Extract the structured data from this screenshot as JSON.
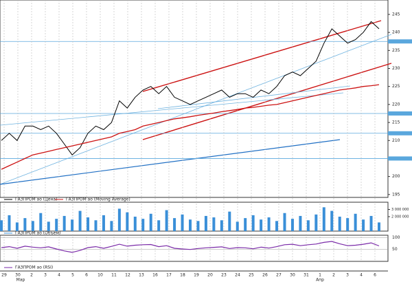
{
  "chart_data": {
    "type": "line",
    "series": [
      {
        "name": "ГАЗПРОМ ао (Цена)",
        "color": "#000000",
        "values": [
          210,
          212,
          210,
          214,
          214,
          213,
          214,
          212,
          209,
          206,
          208,
          212,
          214,
          213,
          215,
          221,
          219,
          222,
          224,
          225,
          223,
          225,
          222,
          221,
          220,
          221,
          222,
          223,
          224,
          222,
          223,
          223,
          222,
          224,
          223,
          225,
          228,
          229,
          228,
          230,
          232,
          237,
          241,
          239,
          237,
          238,
          240,
          243,
          241
        ]
      },
      {
        "name": "ГАЗПРОМ ао (Moving Average)",
        "color": "#cc1111",
        "values": [
          202,
          203,
          204,
          205,
          206,
          206.5,
          207,
          207.5,
          208,
          208.5,
          209,
          209.5,
          210,
          210.5,
          211,
          212,
          212.5,
          213,
          214,
          214.5,
          215,
          215.5,
          216,
          216.3,
          216.6,
          217,
          217.3,
          217.6,
          218,
          218.3,
          218.6,
          219,
          219.2,
          219.5,
          219.8,
          220,
          220.5,
          221,
          221.5,
          222,
          222.5,
          223,
          223.5,
          224,
          224.3,
          224.6,
          225,
          225.2,
          225.5
        ]
      }
    ],
    "ylim": [
      194.2,
      249
    ],
    "yticks": [
      195,
      200,
      205,
      210,
      215,
      220,
      225,
      230,
      235,
      240,
      245
    ],
    "levels": [
      237.5,
      217.5,
      212,
      205
    ],
    "volume": {
      "name": "ГАЗПРОМ ао (Объем)",
      "color": "#3a8fd8",
      "values": [
        1500000,
        2200000,
        1200000,
        1800000,
        1400000,
        2500000,
        1300000,
        1700000,
        2100000,
        1600000,
        2800000,
        1900000,
        1500000,
        2200000,
        1400000,
        3100000,
        2600000,
        2000000,
        1700000,
        2400000,
        1500000,
        2900000,
        1800000,
        2300000,
        1600000,
        1400000,
        2100000,
        1900000,
        1500000,
        2700000,
        1300000,
        1800000,
        2200000,
        1600000,
        1900000,
        1400000,
        2500000,
        1700000,
        2100000,
        1500000,
        2300000,
        3300000,
        2800000,
        2000000,
        1800000,
        2400000,
        1600000,
        2100000,
        1200000
      ],
      "ylim": [
        0,
        4000000
      ],
      "yticks": [
        {
          "value": 3000000,
          "label": "3 000 000"
        },
        {
          "value": 2000000,
          "label": "2 000 000"
        }
      ]
    },
    "rsi": {
      "name": "ГАЗПРОМ ао (RSI)",
      "color": "#7a2aa8",
      "values": [
        58,
        62,
        55,
        64,
        60,
        57,
        61,
        52,
        44,
        38,
        46,
        58,
        62,
        55,
        63,
        72,
        64,
        68,
        70,
        71,
        62,
        66,
        55,
        52,
        50,
        54,
        57,
        59,
        61,
        54,
        58,
        57,
        53,
        60,
        56,
        62,
        70,
        72,
        66,
        70,
        73,
        80,
        84,
        74,
        66,
        68,
        72,
        78,
        65
      ],
      "ylim": [
        0,
        110
      ],
      "yticks": [
        100,
        50
      ]
    },
    "xtick_labels": [
      "29",
      "30",
      "2",
      "3",
      "4",
      "5",
      "6",
      "10",
      "11",
      "12",
      "13",
      "16",
      "17",
      "18",
      "19",
      "20",
      "23",
      "24",
      "25",
      "26",
      "27",
      "30",
      "31",
      "1",
      "2",
      "3",
      "4",
      "6"
    ],
    "month_labels": [
      "Мар",
      "Апр"
    ]
  }
}
